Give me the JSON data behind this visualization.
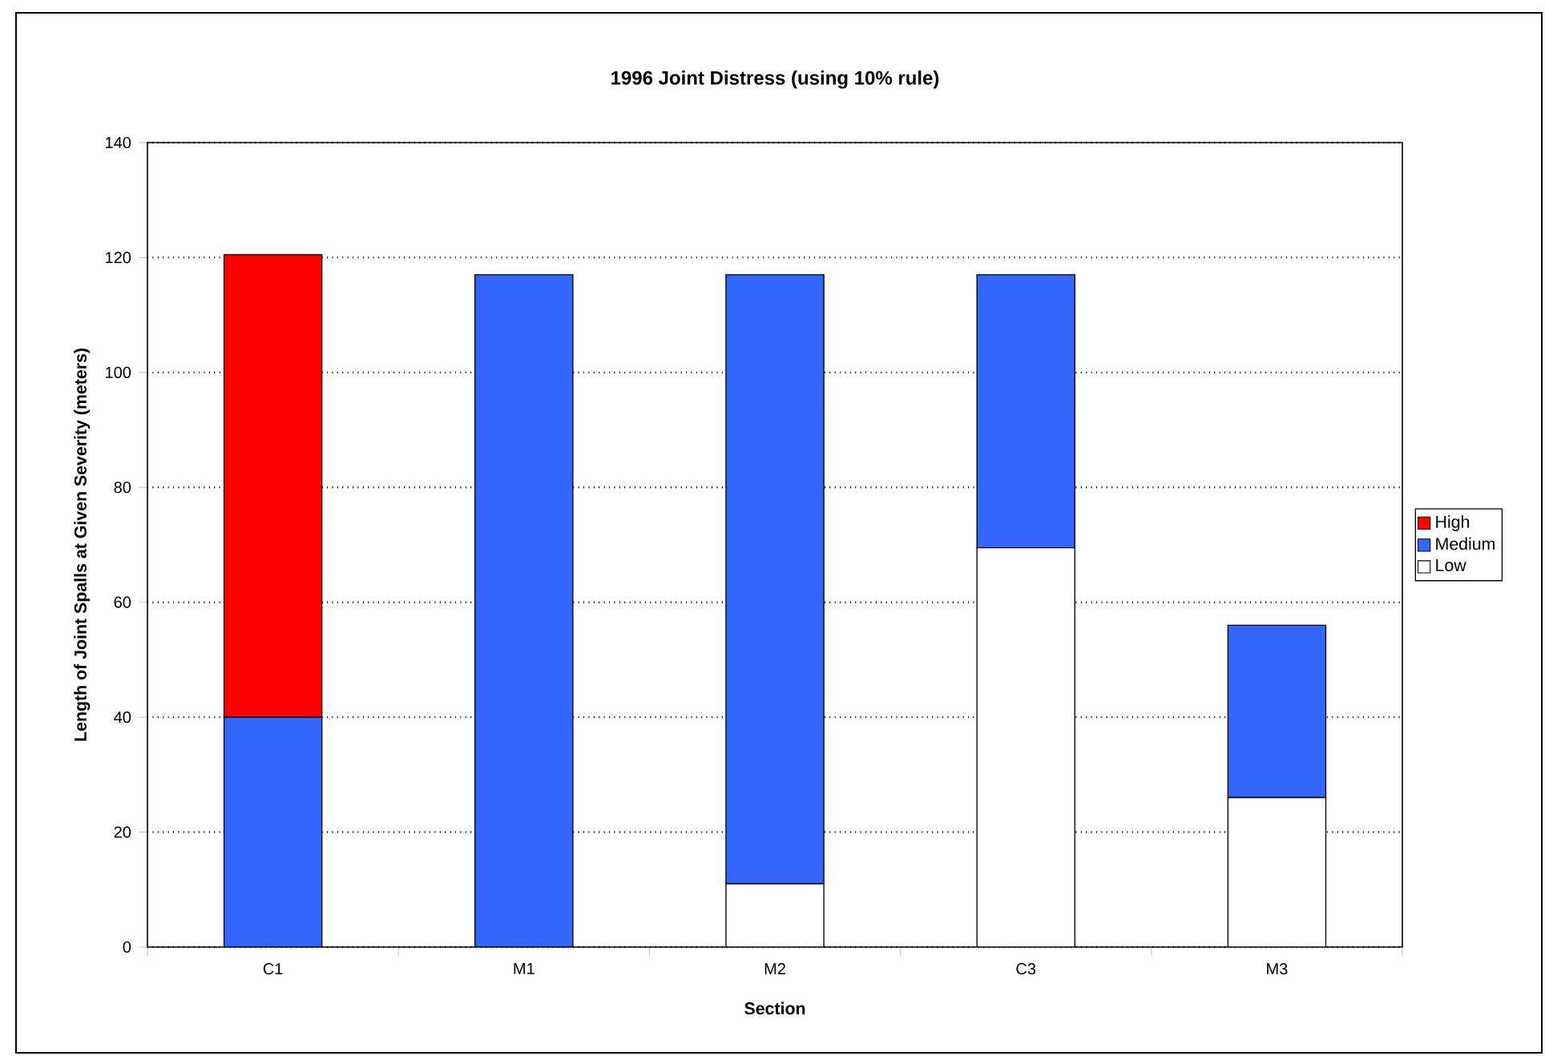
{
  "chart_data": {
    "type": "bar",
    "title": "1996 Joint Distress (using 10% rule)",
    "xlabel": "Section",
    "ylabel": "Length of Joint Spalls at Given Severity (meters)",
    "categories": [
      "C1",
      "M1",
      "M2",
      "C3",
      "M3"
    ],
    "stacked": true,
    "series": [
      {
        "name": "Low",
        "color": "#ffffff",
        "values": [
          0,
          0,
          11,
          69.5,
          26
        ]
      },
      {
        "name": "Medium",
        "color": "#3366ff",
        "values": [
          40,
          117,
          106,
          47.5,
          30
        ]
      },
      {
        "name": "High",
        "color": "#ff0000",
        "values": [
          80.5,
          0,
          0,
          0,
          0
        ]
      }
    ],
    "ylim": [
      0,
      140
    ],
    "yticks": [
      0,
      20,
      40,
      60,
      80,
      100,
      120,
      140
    ],
    "grid": "y",
    "legend": "right"
  }
}
